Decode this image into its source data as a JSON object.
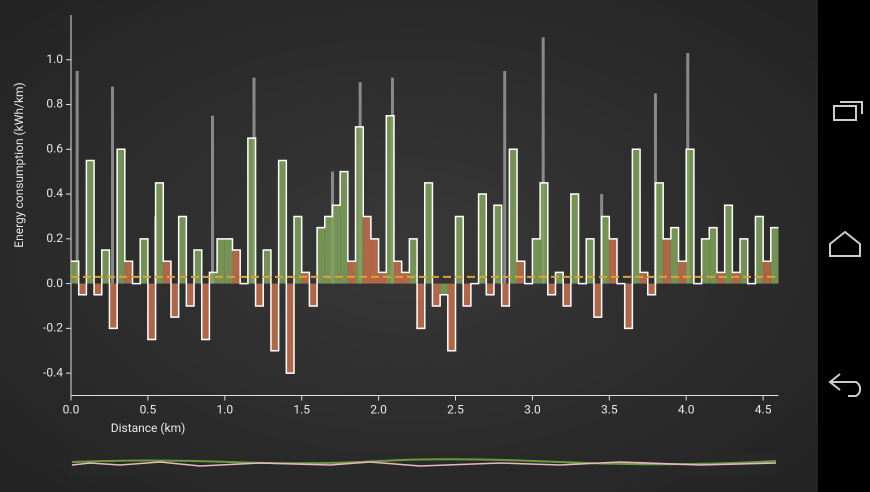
{
  "chart_data": {
    "type": "step",
    "x_label": "Distance (km)",
    "y_label": "Energy consumption (kWh/km)",
    "xlim": [
      0,
      4.6
    ],
    "ylim": [
      -0.5,
      1.2
    ],
    "xticks": [
      {
        "value": 0,
        "label": "0.0"
      },
      0.5,
      {
        "value": 1,
        "label": "1.0"
      },
      1.5,
      {
        "value": 2,
        "label": "2.0"
      },
      2.5,
      {
        "value": 3,
        "label": "3.0"
      },
      3.5,
      {
        "value": 4,
        "label": "4.0"
      },
      4.5
    ],
    "yticks": [
      -0.4,
      -0.2,
      {
        "value": 0,
        "label": "0.0"
      },
      0.2,
      0.4,
      0.6,
      0.8,
      {
        "value": 1,
        "label": "1.0"
      }
    ],
    "x": [
      0,
      0.05,
      0.1,
      0.15,
      0.2,
      0.25,
      0.3,
      0.35,
      0.4,
      0.45,
      0.5,
      0.55,
      0.6,
      0.65,
      0.7,
      0.75,
      0.8,
      0.85,
      0.9,
      0.95,
      1,
      1.05,
      1.1,
      1.15,
      1.2,
      1.25,
      1.3,
      1.35,
      1.4,
      1.45,
      1.5,
      1.55,
      1.6,
      1.65,
      1.7,
      1.75,
      1.8,
      1.85,
      1.9,
      1.95,
      2,
      2.05,
      2.1,
      2.15,
      2.2,
      2.25,
      2.3,
      2.35,
      2.4,
      2.45,
      2.5,
      2.55,
      2.6,
      2.65,
      2.7,
      2.75,
      2.8,
      2.85,
      2.9,
      2.95,
      3,
      3.05,
      3.1,
      3.15,
      3.2,
      3.25,
      3.3,
      3.35,
      3.4,
      3.45,
      3.5,
      3.55,
      3.6,
      3.65,
      3.7,
      3.75,
      3.8,
      3.85,
      3.9,
      3.95,
      4,
      4.05,
      4.1,
      4.15,
      4.2,
      4.25,
      4.3,
      4.35,
      4.4,
      4.45,
      4.5,
      4.55
    ],
    "values": [
      0.1,
      -0.05,
      0.55,
      -0.05,
      0.15,
      -0.2,
      0.6,
      0.1,
      0,
      0.2,
      -0.25,
      0.45,
      0.1,
      -0.15,
      0.3,
      -0.1,
      0.15,
      -0.25,
      0.05,
      0.2,
      0.2,
      0.15,
      0,
      0.65,
      -0.1,
      0.15,
      -0.3,
      0.55,
      -0.4,
      0.3,
      0.05,
      -0.1,
      0.25,
      0.3,
      0.35,
      0.5,
      0.1,
      0.7,
      0.3,
      0.2,
      0.05,
      0.75,
      0.1,
      0.05,
      0.2,
      -0.2,
      0.45,
      -0.1,
      -0.05,
      -0.3,
      0.3,
      -0.1,
      0,
      0.4,
      -0.05,
      0.35,
      -0.1,
      0.6,
      0.1,
      0,
      0.2,
      0.45,
      -0.05,
      0.05,
      -0.1,
      0.4,
      0,
      0.2,
      -0.15,
      0.3,
      0.2,
      0,
      -0.2,
      0.6,
      0.05,
      -0.05,
      0.45,
      0.2,
      0.25,
      0.1,
      0.6,
      0,
      0.2,
      0.25,
      0.05,
      0.35,
      0.05,
      0.2,
      0,
      0.3,
      0.1,
      0.25
    ],
    "peaks_x": [
      0.04,
      0.27,
      0.55,
      0.92,
      1.19,
      1.7,
      1.88,
      2.09,
      2.82,
      3.07,
      3.45,
      3.8,
      4.01
    ],
    "peaks": [
      0.95,
      0.88,
      0.3,
      0.75,
      0.92,
      0.5,
      0.9,
      0.92,
      0.95,
      1.1,
      0.4,
      0.85,
      1.03
    ],
    "average": 0.03,
    "colors": {
      "rise": "#7fa35a",
      "fall": "#c8704c",
      "outline": "#ffffff",
      "peak": "#9a9a9a",
      "average": "#e0a030"
    }
  }
}
